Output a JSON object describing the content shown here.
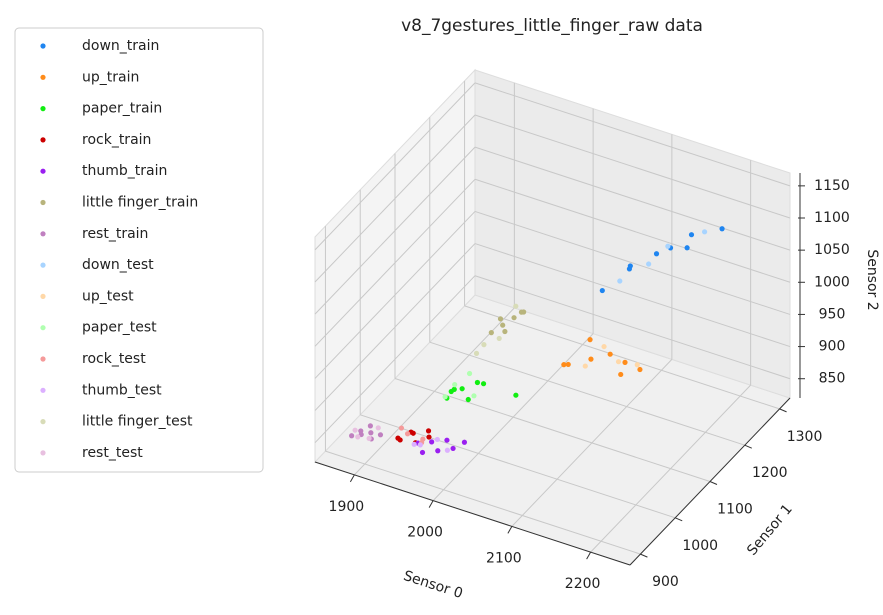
{
  "chart_data": {
    "type": "scatter3d",
    "title": "v8_7gestures_little_finger_raw data",
    "xlabel": "Sensor 0",
    "ylabel": "Sensor 1",
    "zlabel": "Sensor 2",
    "xlim": [
      1850,
      2250
    ],
    "ylim": [
      870,
      1330
    ],
    "zlim": [
      820,
      1170
    ],
    "xticks": [
      1900,
      2000,
      2100,
      2200
    ],
    "yticks": [
      900,
      1000,
      1100,
      1200,
      1300
    ],
    "zticks": [
      850,
      900,
      950,
      1000,
      1050,
      1100,
      1150
    ],
    "grid": true,
    "legend": "outside left",
    "series": [
      {
        "name": "down_train",
        "color": "#1f85f0",
        "x": [
          2100,
          2130,
          2160,
          2180,
          2200,
          2140,
          2190,
          2230
        ],
        "y": [
          1130,
          1140,
          1150,
          1145,
          1160,
          1120,
          1170,
          1180
        ],
        "z": [
          1040,
          1080,
          1110,
          1130,
          1150,
          1100,
          1120,
          1160
        ]
      },
      {
        "name": "up_train",
        "color": "#ff8c1a",
        "x": [
          2060,
          2090,
          2110,
          2130,
          2080,
          2120,
          2150,
          2070
        ],
        "y": [
          1110,
          1120,
          1130,
          1115,
          1140,
          1150,
          1125,
          1100
        ],
        "z": [
          920,
          935,
          945,
          930,
          950,
          925,
          940,
          930
        ]
      },
      {
        "name": "paper_train",
        "color": "#11ee11",
        "x": [
          1960,
          1975,
          1990,
          1970,
          1985,
          2000,
          1965,
          2030
        ],
        "y": [
          1000,
          1010,
          1020,
          990,
          1005,
          1015,
          1010,
          1040
        ],
        "z": [
          890,
          905,
          915,
          910,
          895,
          920,
          900,
          900
        ]
      },
      {
        "name": "rock_train",
        "color": "#cc0000",
        "x": [
          1920,
          1935,
          1950,
          1940,
          1930,
          1955,
          1925
        ],
        "y": [
          950,
          960,
          970,
          955,
          965,
          960,
          945
        ],
        "z": [
          840,
          848,
          852,
          838,
          845,
          850,
          842
        ]
      },
      {
        "name": "thumb_train",
        "color": "#9a1ff0",
        "x": [
          1950,
          1965,
          1980,
          1975,
          1990,
          1960,
          2000
        ],
        "y": [
          940,
          945,
          955,
          940,
          950,
          930,
          960
        ],
        "z": [
          850,
          855,
          858,
          848,
          852,
          845,
          860
        ]
      },
      {
        "name": "little finger_train",
        "color": "#b8b47c",
        "x": [
          1990,
          2000,
          2010,
          2020,
          1995,
          2005,
          2015
        ],
        "y": [
          1060,
          1070,
          1080,
          1085,
          1075,
          1065,
          1090
        ],
        "z": [
          970,
          980,
          990,
          1000,
          985,
          975,
          995
        ]
      },
      {
        "name": "rest_train",
        "color": "#c080c0",
        "x": [
          1880,
          1890,
          1875,
          1895,
          1885,
          1900,
          1870
        ],
        "y": [
          935,
          940,
          945,
          930,
          950,
          945,
          930
        ],
        "z": [
          838,
          842,
          836,
          840,
          845,
          840,
          835
        ]
      },
      {
        "name": "down_test",
        "color": "#a8d4ff",
        "x": [
          2120,
          2170,
          2210,
          2150
        ],
        "y": [
          1135,
          1160,
          1175,
          1150
        ],
        "z": [
          1060,
          1120,
          1150,
          1090
        ]
      },
      {
        "name": "up_test",
        "color": "#ffd8a8",
        "x": [
          2100,
          2140,
          2085,
          2125
        ],
        "y": [
          1135,
          1140,
          1115,
          1120
        ],
        "z": [
          950,
          935,
          925,
          945
        ]
      },
      {
        "name": "paper_test",
        "color": "#b0ffb0",
        "x": [
          1970,
          1990,
          1980,
          1960
        ],
        "y": [
          1000,
          1010,
          1020,
          995
        ],
        "z": [
          915,
          900,
          925,
          895
        ]
      },
      {
        "name": "rock_test",
        "color": "#f59a9a",
        "x": [
          1930,
          1945,
          1920,
          1950
        ],
        "y": [
          955,
          965,
          960,
          950
        ],
        "z": [
          848,
          840,
          850,
          845
        ]
      },
      {
        "name": "thumb_test",
        "color": "#dcb0ff",
        "x": [
          1955,
          1970,
          1985,
          1945
        ],
        "y": [
          935,
          950,
          945,
          940
        ],
        "z": [
          852,
          858,
          850,
          846
        ]
      },
      {
        "name": "little finger_test",
        "color": "#d8dcb8",
        "x": [
          1985,
          2000,
          2010,
          1980
        ],
        "y": [
          1050,
          1060,
          1085,
          1040
        ],
        "z": [
          955,
          965,
          1005,
          945
        ]
      },
      {
        "name": "rest_test",
        "color": "#e8c0e0",
        "x": [
          1880,
          1895,
          1870,
          1890
        ],
        "y": [
          925,
          950,
          940,
          935
        ],
        "z": [
          840,
          846,
          838,
          836
        ]
      }
    ]
  }
}
